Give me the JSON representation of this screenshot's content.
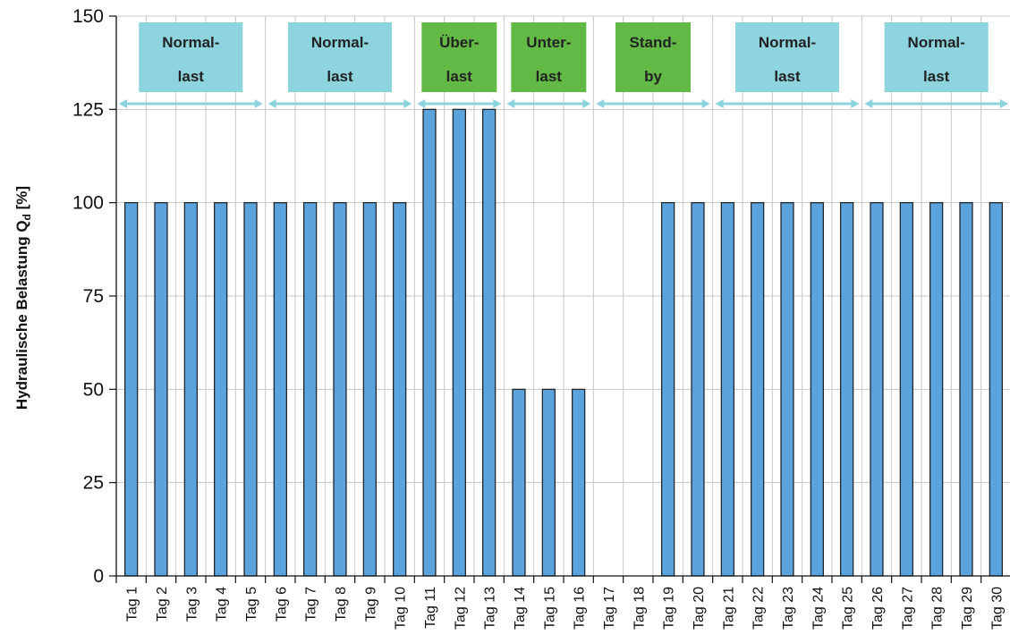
{
  "colors": {
    "bar": "#5ba3dc",
    "bar_border": "#1a1a1a",
    "grid": "#c8c8c8",
    "arrow": "#8cd3dd",
    "normal_box": "#8dd4de",
    "special_box": "#62b946"
  },
  "chart_data": {
    "type": "bar",
    "ylabel_main": "Hydraulische Belastung Q",
    "ylabel_sub": "d",
    "ylabel_unit": " [%]",
    "ylim": [
      0,
      150
    ],
    "yticks": [
      0,
      25,
      50,
      75,
      100,
      125,
      150
    ],
    "grid": true,
    "categories": [
      "Tag 1",
      "Tag 2",
      "Tag 3",
      "Tag 4",
      "Tag 5",
      "Tag 6",
      "Tag 7",
      "Tag 8",
      "Tag 9",
      "Tag 10",
      "Tag 11",
      "Tag 12",
      "Tag 13",
      "Tag 14",
      "Tag 15",
      "Tag 16",
      "Tag 17",
      "Tag 18",
      "Tag 19",
      "Tag 20",
      "Tag 21",
      "Tag 22",
      "Tag 23",
      "Tag 24",
      "Tag 25",
      "Tag 26",
      "Tag 27",
      "Tag 28",
      "Tag 29",
      "Tag 30"
    ],
    "values": [
      100,
      100,
      100,
      100,
      100,
      100,
      100,
      100,
      100,
      100,
      125,
      125,
      125,
      50,
      50,
      50,
      0,
      0,
      100,
      100,
      100,
      100,
      100,
      100,
      100,
      100,
      100,
      100,
      100,
      100
    ],
    "phases": [
      {
        "line1": "Normal-",
        "line2": "last",
        "start_day": 1,
        "end_day": 5,
        "kind": "normal"
      },
      {
        "line1": "Normal-",
        "line2": "last",
        "start_day": 6,
        "end_day": 10,
        "kind": "normal"
      },
      {
        "line1": "Über-",
        "line2": "last",
        "start_day": 11,
        "end_day": 13,
        "kind": "special"
      },
      {
        "line1": "Unter-",
        "line2": "last",
        "start_day": 14,
        "end_day": 16,
        "kind": "special"
      },
      {
        "line1": "Stand-",
        "line2": "by",
        "start_day": 17,
        "end_day": 20,
        "kind": "special"
      },
      {
        "line1": "Normal-",
        "line2": "last",
        "start_day": 21,
        "end_day": 25,
        "kind": "normal"
      },
      {
        "line1": "Normal-",
        "line2": "last",
        "start_day": 26,
        "end_day": 30,
        "kind": "normal"
      }
    ]
  }
}
